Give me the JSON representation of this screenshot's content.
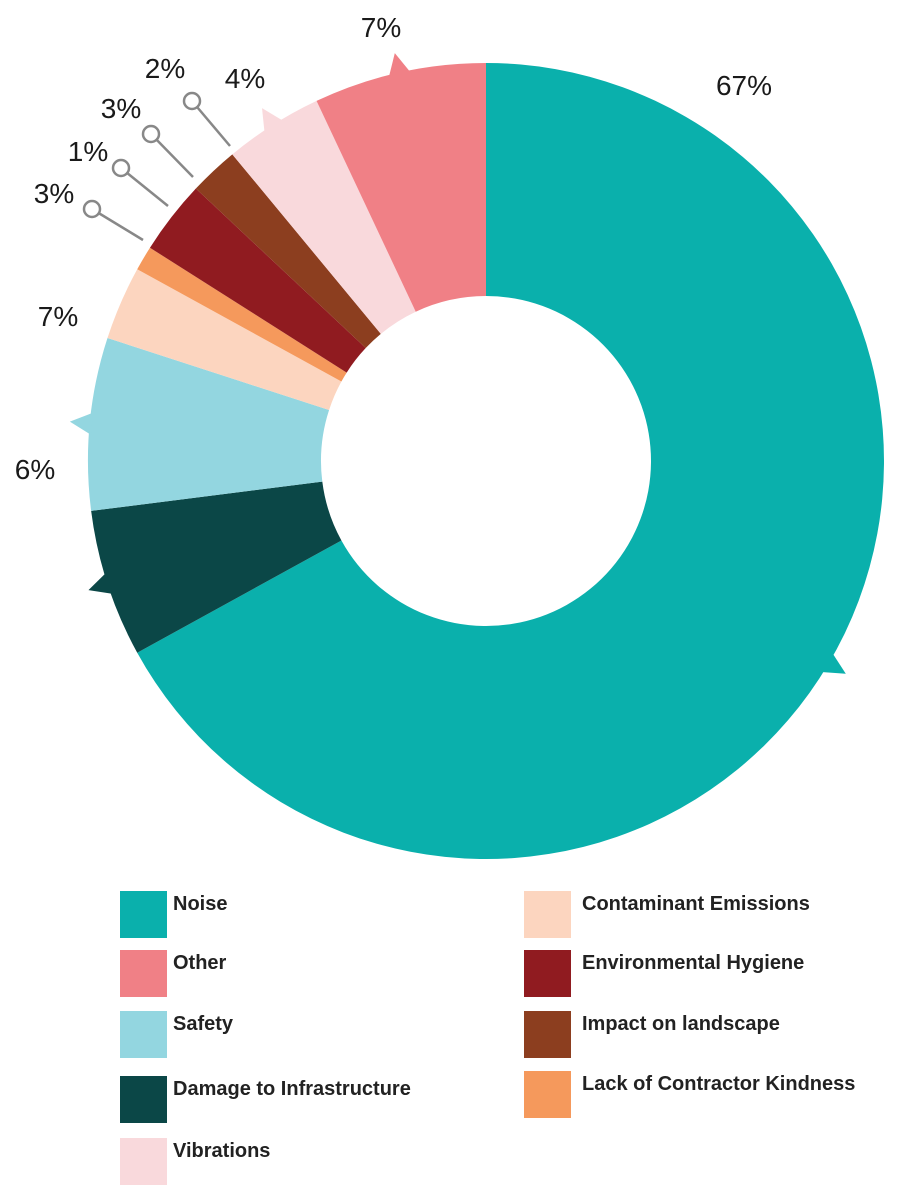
{
  "chart_data": {
    "type": "pie",
    "variant": "donut",
    "unit": "%",
    "slices": [
      {
        "label": "Noise",
        "value": 67,
        "color": "#0AB0AC",
        "display": "67%"
      },
      {
        "label": "Damage to Infrastructure",
        "value": 6,
        "color": "#0B4747",
        "display": "6%"
      },
      {
        "label": "Safety",
        "value": 7,
        "color": "#93D6E0",
        "display": "7%"
      },
      {
        "label": "Contaminant Emissions",
        "value": 3,
        "color": "#FCD5BF",
        "display": "3%"
      },
      {
        "label": "Lack of Contractor Kindness",
        "value": 1,
        "color": "#F5995C",
        "display": "1%"
      },
      {
        "label": "Environmental Hygiene",
        "value": 3,
        "color": "#901B20",
        "display": "3%"
      },
      {
        "label": "Impact on landscape",
        "value": 2,
        "color": "#8C3E1F",
        "display": "2%"
      },
      {
        "label": "Vibrations",
        "value": 4,
        "color": "#F9D9DC",
        "display": "4%"
      },
      {
        "label": "Other",
        "value": 7,
        "color": "#F08086",
        "display": "7%"
      }
    ],
    "legend": {
      "placement": "bottom",
      "columns": [
        [
          "Noise",
          "Other",
          "Safety",
          "Damage to Infrastructure",
          "Vibrations"
        ],
        [
          "Contaminant Emissions",
          "Environmental Hygiene",
          "Impact on landscape",
          "Lack of Contractor Kindness"
        ]
      ]
    }
  }
}
